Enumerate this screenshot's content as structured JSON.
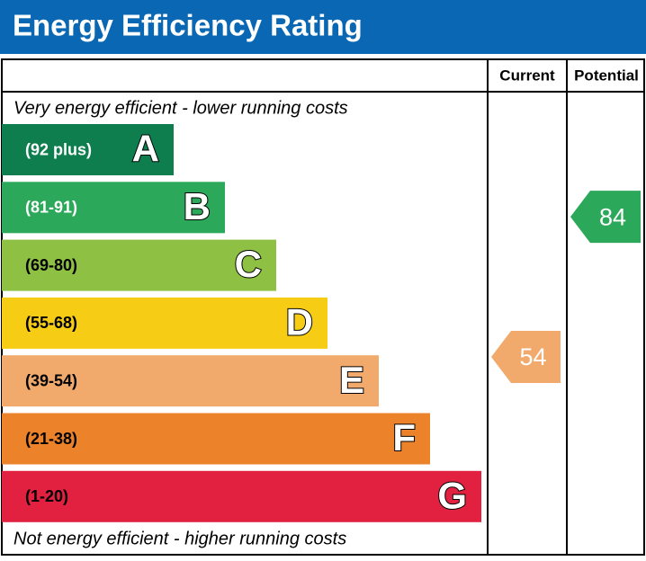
{
  "title": "Energy Efficiency Rating",
  "headers": {
    "current": "Current",
    "potential": "Potential"
  },
  "top_note": "Very energy efficient - lower running costs",
  "bottom_note": "Not energy efficient - higher running costs",
  "bands": [
    {
      "range": "(92 plus)",
      "letter": "A",
      "color": "#0f7e4f",
      "text_color": "#ffffff"
    },
    {
      "range": "(81-91)",
      "letter": "B",
      "color": "#2ba85a",
      "text_color": "#ffffff"
    },
    {
      "range": "(69-80)",
      "letter": "C",
      "color": "#8dc043",
      "text_color": "#000000"
    },
    {
      "range": "(55-68)",
      "letter": "D",
      "color": "#f6cd14",
      "text_color": "#000000"
    },
    {
      "range": "(39-54)",
      "letter": "E",
      "color": "#f2aa6c",
      "text_color": "#000000"
    },
    {
      "range": "(21-38)",
      "letter": "F",
      "color": "#ec8229",
      "text_color": "#000000"
    },
    {
      "range": "(1-20)",
      "letter": "G",
      "color": "#e2203f",
      "text_color": "#000000"
    }
  ],
  "current": 54,
  "potential": 84
}
